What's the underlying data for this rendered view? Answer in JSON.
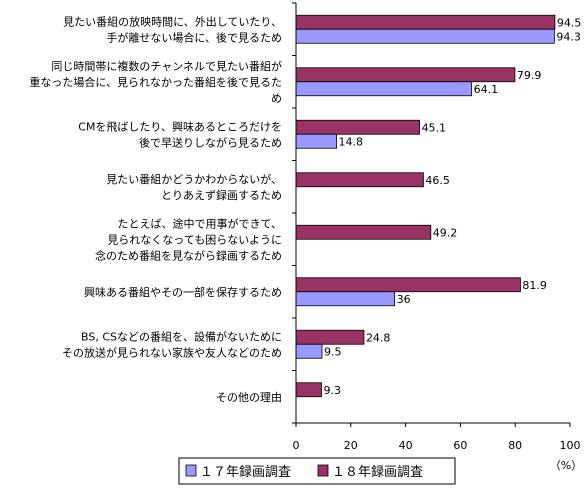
{
  "chart_data": {
    "type": "bar",
    "orientation": "horizontal",
    "categories": [
      [
        "見たい番組の放映時間に、外出していたり、",
        "手が離せない場合に、後で見るため"
      ],
      [
        "同じ時間帯に複数のチャンネルで見たい番組が",
        "重なった場合に、見られなかった番組を後で見るた",
        "め"
      ],
      [
        "CMを飛ばしたり、興味あるところだけを",
        "後で早送りしながら見るため"
      ],
      [
        "見たい番組かどうかわからないが、",
        "とりあえず録画するため"
      ],
      [
        "たとえば、途中で用事ができて、",
        "見られなくなっても困らないように",
        "念のため番組を見ながら録画するため"
      ],
      [
        "興味ある番組やその一部を保存するため"
      ],
      [
        "BS, CSなどの番組を、設備がないために",
        "その放送が見られない家族や友人などのため"
      ],
      [
        "その他の理由"
      ]
    ],
    "series": [
      {
        "name": "１８年録画調査",
        "color": "#993366",
        "values": [
          94.5,
          79.9,
          45.1,
          46.5,
          49.2,
          81.9,
          24.8,
          9.3
        ]
      },
      {
        "name": "１７年録画調査",
        "color": "#9999ff",
        "values": [
          94.3,
          64.1,
          14.8,
          null,
          null,
          36,
          9.5,
          null
        ]
      }
    ],
    "value_labels": [
      [
        "94.5",
        "79.9",
        "45.1",
        "46.5",
        "49.2",
        "81.9",
        "24.8",
        "9.3"
      ],
      [
        "94.3",
        "64.1",
        "14.8",
        "",
        "",
        "36",
        "9.5",
        ""
      ]
    ],
    "xlim": [
      0,
      100
    ],
    "xticks": [
      0,
      20,
      40,
      60,
      80,
      100
    ],
    "xtick_labels": [
      "0",
      "20",
      "40",
      "60",
      "80",
      "100"
    ],
    "unit_label": "（%）",
    "legend": {
      "placement": "bottom",
      "items": [
        {
          "label": "１７年録画調査",
          "color": "#9999ff"
        },
        {
          "label": "１８年録画調査",
          "color": "#993366"
        }
      ]
    },
    "grid": false
  }
}
